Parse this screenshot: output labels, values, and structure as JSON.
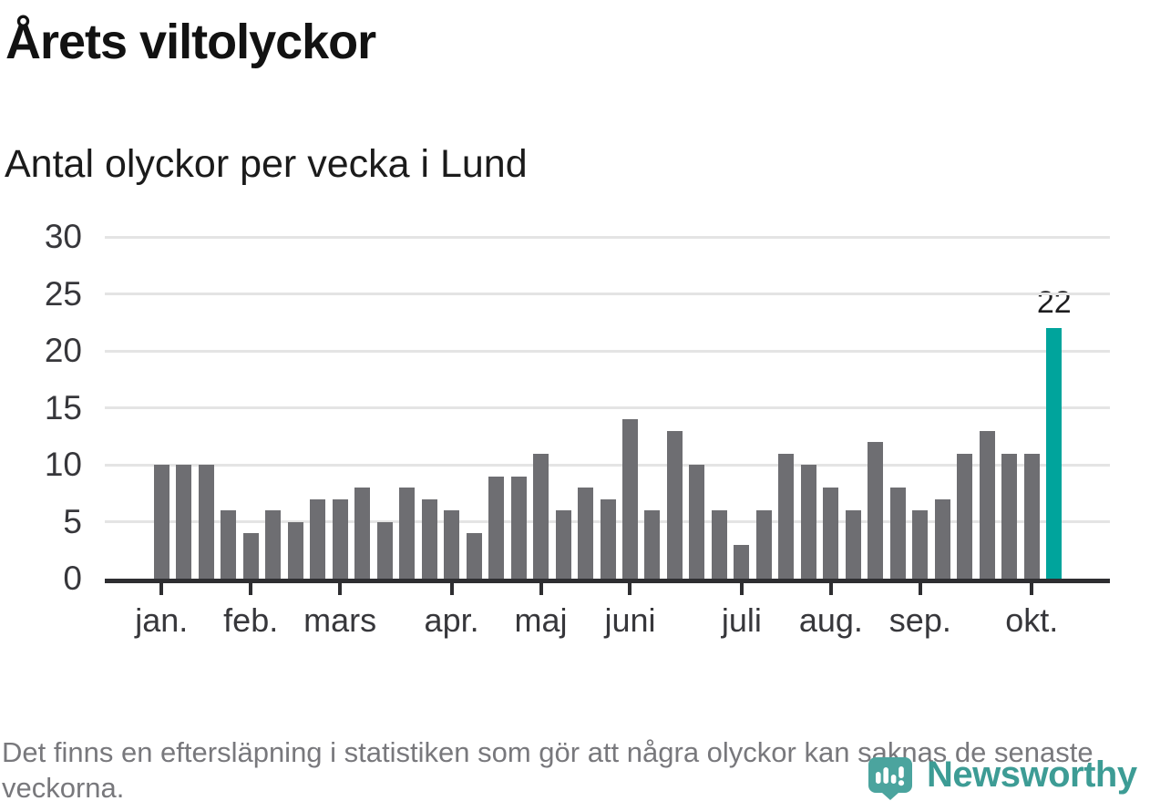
{
  "title": "Årets viltolyckor",
  "subtitle": "Antal olyckor per vecka i Lund",
  "footnote": "Det finns en eftersläpning i statistiken som gör att några olyckor kan saknas de senaste veckorna.",
  "branding": {
    "wordmark": "Newsworthy",
    "logo_icon": "newsworthy-pin-barchart-icon",
    "brand_color": "#3d9c95",
    "icon_color": "#4ba49e"
  },
  "chart_data": {
    "type": "bar",
    "title": "Årets viltolyckor",
    "subtitle": "Antal olyckor per vecka i Lund",
    "x_unit": "vecka",
    "values": [
      10,
      10,
      10,
      6,
      4,
      6,
      5,
      7,
      7,
      8,
      5,
      8,
      7,
      6,
      4,
      9,
      9,
      11,
      6,
      8,
      7,
      14,
      6,
      13,
      10,
      6,
      3,
      6,
      11,
      10,
      8,
      6,
      12,
      8,
      6,
      7,
      11,
      13,
      11,
      11,
      22
    ],
    "highlight_index": 40,
    "highlight_label": "22",
    "bar_color": "#6e6e72",
    "highlight_color": "#00a49c",
    "y_ticks": [
      0,
      5,
      10,
      15,
      20,
      25,
      30
    ],
    "ylim": [
      0,
      30
    ],
    "grid": true,
    "legend": "none",
    "x_month_ticks": [
      {
        "label": "jan.",
        "bar_index": 0
      },
      {
        "label": "feb.",
        "bar_index": 4
      },
      {
        "label": "mars",
        "bar_index": 8
      },
      {
        "label": "apr.",
        "bar_index": 13
      },
      {
        "label": "maj",
        "bar_index": 17
      },
      {
        "label": "juni",
        "bar_index": 21
      },
      {
        "label": "juli",
        "bar_index": 26
      },
      {
        "label": "aug.",
        "bar_index": 30
      },
      {
        "label": "sep.",
        "bar_index": 34
      },
      {
        "label": "okt.",
        "bar_index": 39
      }
    ]
  }
}
